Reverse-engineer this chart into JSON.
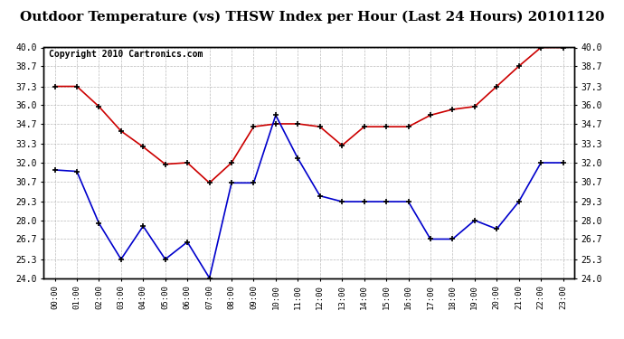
{
  "title": "Outdoor Temperature (vs) THSW Index per Hour (Last 24 Hours) 20101120",
  "copyright": "Copyright 2010 Cartronics.com",
  "hours": [
    "00:00",
    "01:00",
    "02:00",
    "03:00",
    "04:00",
    "05:00",
    "06:00",
    "07:00",
    "08:00",
    "09:00",
    "10:00",
    "11:00",
    "12:00",
    "13:00",
    "14:00",
    "15:00",
    "16:00",
    "17:00",
    "18:00",
    "19:00",
    "20:00",
    "21:00",
    "22:00",
    "23:00"
  ],
  "red_series": [
    37.3,
    37.3,
    35.9,
    34.2,
    33.1,
    31.9,
    32.0,
    30.6,
    32.0,
    34.5,
    34.7,
    34.7,
    34.5,
    33.2,
    34.5,
    34.5,
    34.5,
    35.3,
    35.7,
    35.9,
    37.3,
    38.7,
    40.0,
    40.0
  ],
  "blue_series": [
    31.5,
    31.4,
    27.8,
    25.3,
    27.6,
    25.3,
    26.5,
    24.0,
    30.6,
    30.6,
    35.3,
    32.3,
    29.7,
    29.3,
    29.3,
    29.3,
    29.3,
    26.7,
    26.7,
    28.0,
    27.4,
    29.3,
    32.0,
    32.0
  ],
  "ylim_min": 24.0,
  "ylim_max": 40.0,
  "yticks": [
    24.0,
    25.3,
    26.7,
    28.0,
    29.3,
    30.7,
    32.0,
    33.3,
    34.7,
    36.0,
    37.3,
    38.7,
    40.0
  ],
  "red_color": "#cc0000",
  "blue_color": "#0000cc",
  "bg_color": "#ffffff",
  "grid_color": "#aaaaaa",
  "title_fontsize": 11,
  "copyright_fontsize": 7
}
